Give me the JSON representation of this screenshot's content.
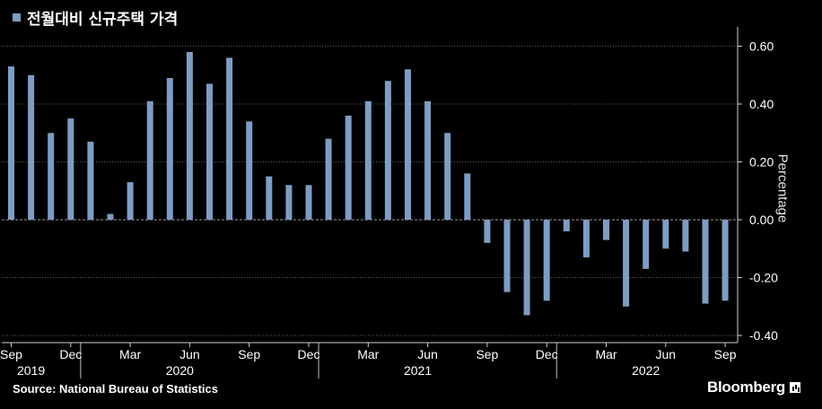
{
  "legend": {
    "label": "전월대비 신규주택 가격"
  },
  "source": "Source: National Bureau of Statistics",
  "brand": "Bloomberg",
  "colors": {
    "bar": "#7f9cc2",
    "background": "#000000",
    "grid": "#5a5a5a",
    "axis": "#cfcfcf",
    "text": "#ffffff"
  },
  "chart_data": {
    "type": "bar",
    "ylabel": "Percentage",
    "ylim": [
      -0.4,
      0.65
    ],
    "yticks": [
      0.6,
      0.4,
      0.2,
      0.0,
      -0.2,
      -0.4
    ],
    "ytick_labels": [
      "0.60",
      "0.40",
      "0.20",
      "0.00",
      "-0.20",
      "-0.40"
    ],
    "grid": "dashed horizontal",
    "y_axis_side": "right",
    "categories": [
      "2019-09",
      "2019-10",
      "2019-11",
      "2019-12",
      "2020-01",
      "2020-02",
      "2020-03",
      "2020-04",
      "2020-05",
      "2020-06",
      "2020-07",
      "2020-08",
      "2020-09",
      "2020-10",
      "2020-11",
      "2020-12",
      "2021-01",
      "2021-02",
      "2021-03",
      "2021-04",
      "2021-05",
      "2021-06",
      "2021-07",
      "2021-08",
      "2021-09",
      "2021-10",
      "2021-11",
      "2021-12",
      "2022-01",
      "2022-02",
      "2022-03",
      "2022-04",
      "2022-05",
      "2022-06",
      "2022-07",
      "2022-08",
      "2022-09"
    ],
    "values": [
      0.53,
      0.5,
      0.3,
      0.35,
      0.27,
      0.02,
      0.13,
      0.41,
      0.49,
      0.58,
      0.47,
      0.56,
      0.34,
      0.15,
      0.12,
      0.12,
      0.28,
      0.36,
      0.41,
      0.48,
      0.52,
      0.41,
      0.3,
      0.16,
      -0.08,
      -0.25,
      -0.33,
      -0.28,
      -0.04,
      -0.13,
      -0.07,
      -0.3,
      -0.17,
      -0.1,
      -0.11,
      -0.29,
      -0.28
    ],
    "month_ticks": [
      {
        "index": 0,
        "label": "Sep"
      },
      {
        "index": 3,
        "label": "Dec"
      },
      {
        "index": 6,
        "label": "Mar"
      },
      {
        "index": 9,
        "label": "Jun"
      },
      {
        "index": 12,
        "label": "Sep"
      },
      {
        "index": 15,
        "label": "Dec"
      },
      {
        "index": 18,
        "label": "Mar"
      },
      {
        "index": 21,
        "label": "Jun"
      },
      {
        "index": 24,
        "label": "Sep"
      },
      {
        "index": 27,
        "label": "Dec"
      },
      {
        "index": 30,
        "label": "Mar"
      },
      {
        "index": 33,
        "label": "Jun"
      },
      {
        "index": 36,
        "label": "Sep"
      }
    ],
    "year_labels": [
      {
        "label": "2019",
        "center_index": 1.0
      },
      {
        "label": "2020",
        "center_index": 8.5
      },
      {
        "label": "2021",
        "center_index": 20.5
      },
      {
        "label": "2022",
        "center_index": 32.0
      }
    ],
    "year_separators": [
      3.5,
      15.5,
      27.5
    ]
  }
}
